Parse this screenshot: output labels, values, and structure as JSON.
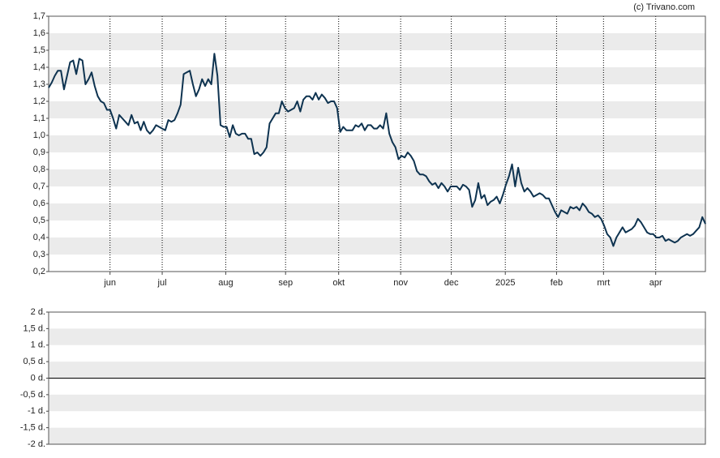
{
  "copyright": "(c) Trivano.com",
  "chart_data": [
    {
      "type": "line",
      "xlim": [
        0,
        214
      ],
      "xticks": [
        {
          "value": 20,
          "label": "jun"
        },
        {
          "value": 37,
          "label": "jul"
        },
        {
          "value": 57.7,
          "label": "aug"
        },
        {
          "value": 77.2,
          "label": "sep"
        },
        {
          "value": 94.5,
          "label": "okt"
        },
        {
          "value": 114.7,
          "label": "nov"
        },
        {
          "value": 131.2,
          "label": "dec"
        },
        {
          "value": 148.8,
          "label": "2025"
        },
        {
          "value": 165.5,
          "label": "feb"
        },
        {
          "value": 180.8,
          "label": "mrt"
        },
        {
          "value": 197.8,
          "label": "apr"
        }
      ],
      "ylim": [
        0.2,
        1.7
      ],
      "yticks": [
        {
          "value": 1.7,
          "label": "1,7"
        },
        {
          "value": 1.6,
          "label": "1,6"
        },
        {
          "value": 1.5,
          "label": "1,5"
        },
        {
          "value": 1.4,
          "label": "1,4"
        },
        {
          "value": 1.3,
          "label": "1,3"
        },
        {
          "value": 1.2,
          "label": "1,2"
        },
        {
          "value": 1.1,
          "label": "1,1"
        },
        {
          "value": 1.0,
          "label": "1,0"
        },
        {
          "value": 0.9,
          "label": "0,9"
        },
        {
          "value": 0.8,
          "label": "0,8"
        },
        {
          "value": 0.7,
          "label": "0,7"
        },
        {
          "value": 0.6,
          "label": "0,6"
        },
        {
          "value": 0.5,
          "label": "0,5"
        },
        {
          "value": 0.4,
          "label": "0,4"
        },
        {
          "value": 0.3,
          "label": "0,3"
        },
        {
          "value": 0.2,
          "label": "0,2"
        }
      ],
      "grid": true,
      "color": "#0e3350",
      "values": [
        1.28,
        1.31,
        1.35,
        1.38,
        1.38,
        1.27,
        1.35,
        1.43,
        1.44,
        1.36,
        1.45,
        1.44,
        1.3,
        1.33,
        1.37,
        1.29,
        1.23,
        1.2,
        1.19,
        1.15,
        1.15,
        1.1,
        1.04,
        1.12,
        1.1,
        1.08,
        1.06,
        1.12,
        1.07,
        1.08,
        1.03,
        1.08,
        1.03,
        1.01,
        1.03,
        1.06,
        1.05,
        1.04,
        1.03,
        1.09,
        1.08,
        1.09,
        1.13,
        1.18,
        1.36,
        1.37,
        1.38,
        1.3,
        1.23,
        1.27,
        1.33,
        1.29,
        1.33,
        1.3,
        1.48,
        1.35,
        1.06,
        1.05,
        1.05,
        0.99,
        1.06,
        1.01,
        1.0,
        1.01,
        1.01,
        0.98,
        0.98,
        0.89,
        0.9,
        0.88,
        0.9,
        0.93,
        1.07,
        1.1,
        1.13,
        1.13,
        1.2,
        1.16,
        1.14,
        1.15,
        1.16,
        1.2,
        1.14,
        1.21,
        1.23,
        1.23,
        1.21,
        1.25,
        1.21,
        1.24,
        1.22,
        1.19,
        1.2,
        1.2,
        1.16,
        1.02,
        1.05,
        1.03,
        1.03,
        1.03,
        1.06,
        1.05,
        1.07,
        1.03,
        1.06,
        1.06,
        1.04,
        1.04,
        1.06,
        1.04,
        1.13,
        1.01,
        0.96,
        0.93,
        0.86,
        0.88,
        0.87,
        0.9,
        0.88,
        0.85,
        0.79,
        0.77,
        0.77,
        0.76,
        0.73,
        0.71,
        0.72,
        0.69,
        0.72,
        0.7,
        0.67,
        0.7,
        0.7,
        0.7,
        0.68,
        0.71,
        0.7,
        0.68,
        0.58,
        0.62,
        0.72,
        0.63,
        0.65,
        0.59,
        0.61,
        0.62,
        0.64,
        0.6,
        0.65,
        0.71,
        0.76,
        0.83,
        0.7,
        0.81,
        0.72,
        0.67,
        0.69,
        0.67,
        0.64,
        0.65,
        0.66,
        0.65,
        0.63,
        0.63,
        0.59,
        0.55,
        0.52,
        0.56,
        0.55,
        0.54,
        0.58,
        0.57,
        0.58,
        0.56,
        0.6,
        0.58,
        0.55,
        0.54,
        0.52,
        0.53,
        0.51,
        0.47,
        0.42,
        0.4,
        0.35,
        0.4,
        0.43,
        0.46,
        0.43,
        0.44,
        0.45,
        0.47,
        0.51,
        0.49,
        0.46,
        0.43,
        0.42,
        0.42,
        0.4,
        0.4,
        0.41,
        0.38,
        0.39,
        0.38,
        0.37,
        0.38,
        0.4,
        0.41,
        0.42,
        0.41,
        0.42,
        0.44,
        0.46,
        0.52,
        0.48
      ]
    },
    {
      "type": "line",
      "ylim": [
        -2,
        2
      ],
      "yticks": [
        {
          "value": 2,
          "label": "2 d."
        },
        {
          "value": 1.5,
          "label": "1,5 d."
        },
        {
          "value": 1,
          "label": "1 d."
        },
        {
          "value": 0.5,
          "label": "0,5 d."
        },
        {
          "value": 0,
          "label": "0 d."
        },
        {
          "value": -0.5,
          "label": "-0,5 d."
        },
        {
          "value": -1,
          "label": "-1 d."
        },
        {
          "value": -1.5,
          "label": "-1,5 d."
        },
        {
          "value": -2,
          "label": "-2 d."
        }
      ],
      "grid": true
    }
  ]
}
